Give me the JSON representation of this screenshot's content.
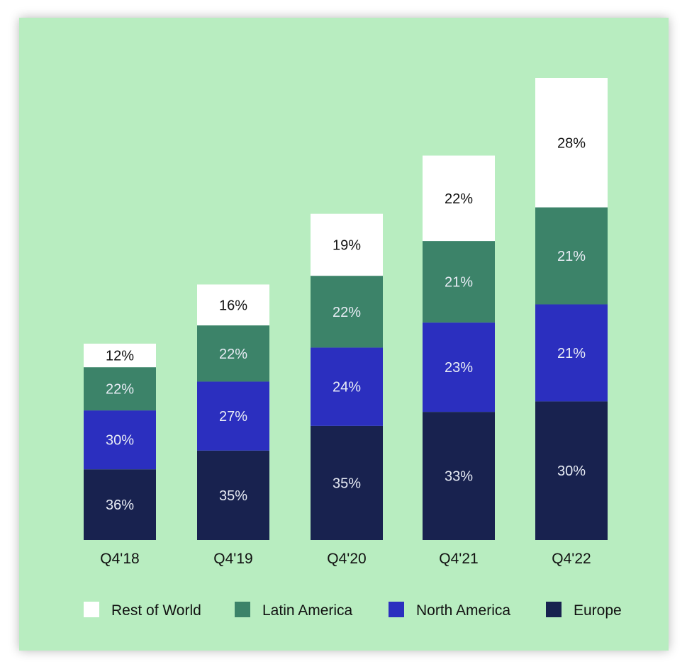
{
  "chart_data": {
    "type": "bar",
    "stacked": true,
    "categories": [
      "Q4'18",
      "Q4'19",
      "Q4'20",
      "Q4'21",
      "Q4'22"
    ],
    "series": [
      {
        "name": "Europe",
        "color": "#18224f",
        "values": [
          36,
          35,
          35,
          33,
          30
        ],
        "labels": [
          "36%",
          "35%",
          "35%",
          "33%",
          "30%"
        ]
      },
      {
        "name": "North America",
        "color": "#2b2fbf",
        "values": [
          30,
          27,
          24,
          23,
          21
        ],
        "labels": [
          "30%",
          "27%",
          "24%",
          "23%",
          "21%"
        ]
      },
      {
        "name": "Latin America",
        "color": "#3c8369",
        "values": [
          22,
          22,
          22,
          21,
          21
        ],
        "labels": [
          "22%",
          "22%",
          "22%",
          "21%",
          "21%"
        ]
      },
      {
        "name": "Rest of World",
        "color": "#ffffff",
        "values": [
          12,
          16,
          19,
          22,
          28
        ],
        "labels": [
          "12%",
          "16%",
          "19%",
          "22%",
          "28%"
        ]
      }
    ],
    "bar_totals_relative": [
      0.425,
      0.553,
      0.706,
      0.832,
      1.0
    ],
    "legend": [
      "Rest of World",
      "Latin America",
      "North America",
      "Europe"
    ],
    "legend_position": "bottom",
    "grid": false,
    "background": "#b8edc0"
  }
}
